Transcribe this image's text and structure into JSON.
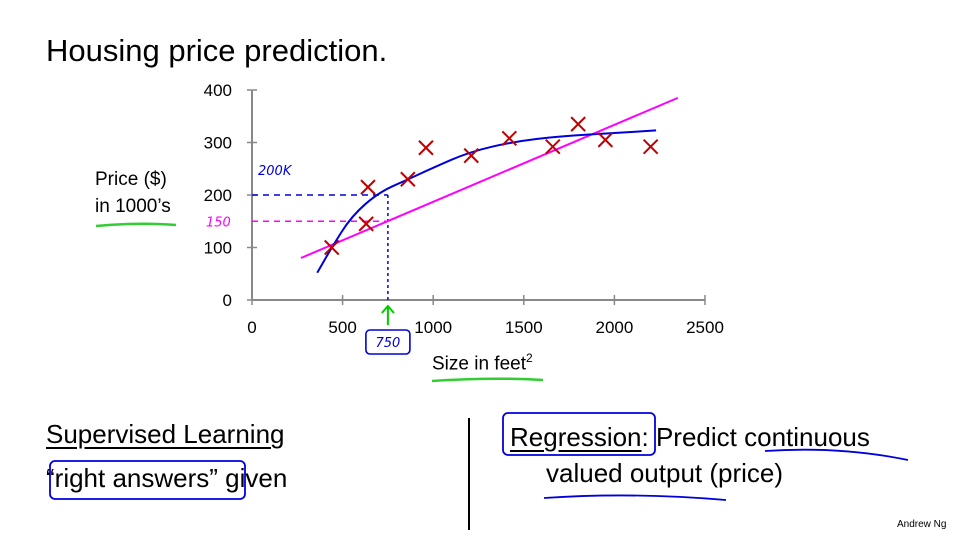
{
  "slide": {
    "title": "Housing price prediction.",
    "bottom_left": {
      "heading": "Supervised Learning",
      "line2": "“right answers” given"
    },
    "bottom_right": {
      "keyword": "Regression",
      "rest1": ": Predict continuous",
      "line2": "valued output (price)"
    },
    "credit": "Andrew Ng"
  },
  "chart_data": {
    "type": "scatter",
    "title": "",
    "ylabel_line1": "Price ($)",
    "ylabel_line2": "in 1000’s",
    "xlabel": "Size in feet",
    "xlabel_sup": "2",
    "xlim": [
      0,
      2500
    ],
    "ylim": [
      0,
      400
    ],
    "xticks": [
      0,
      500,
      1000,
      1500,
      2000,
      2500
    ],
    "yticks": [
      0,
      100,
      200,
      300,
      400
    ],
    "grid": false,
    "points": {
      "x": [
        440,
        630,
        640,
        860,
        960,
        1210,
        1420,
        1660,
        1800,
        1950,
        2200
      ],
      "y": [
        100,
        145,
        215,
        230,
        290,
        275,
        308,
        292,
        335,
        305,
        292
      ]
    },
    "marker_color": "#c00000",
    "fits": [
      {
        "kind": "linear",
        "color": "#ff00ff",
        "x": [
          270,
          2350
        ],
        "y": [
          80,
          385
        ]
      },
      {
        "kind": "curve",
        "color": "#0000dd",
        "x": [
          360,
          440,
          550,
          700,
          850,
          1000,
          1200,
          1450,
          1700,
          2000,
          2230
        ],
        "y": [
          52,
          100,
          160,
          205,
          228,
          252,
          282,
          302,
          312,
          318,
          323
        ]
      }
    ],
    "annotations": {
      "query_size": "750",
      "pred_linear": "150",
      "pred_quadratic": "200K",
      "colors": {
        "arrow": "#00cc00",
        "green_underline": "#33cc33",
        "blue_ink": "#0000dd",
        "magenta_ink": "#ff00ff"
      }
    }
  }
}
